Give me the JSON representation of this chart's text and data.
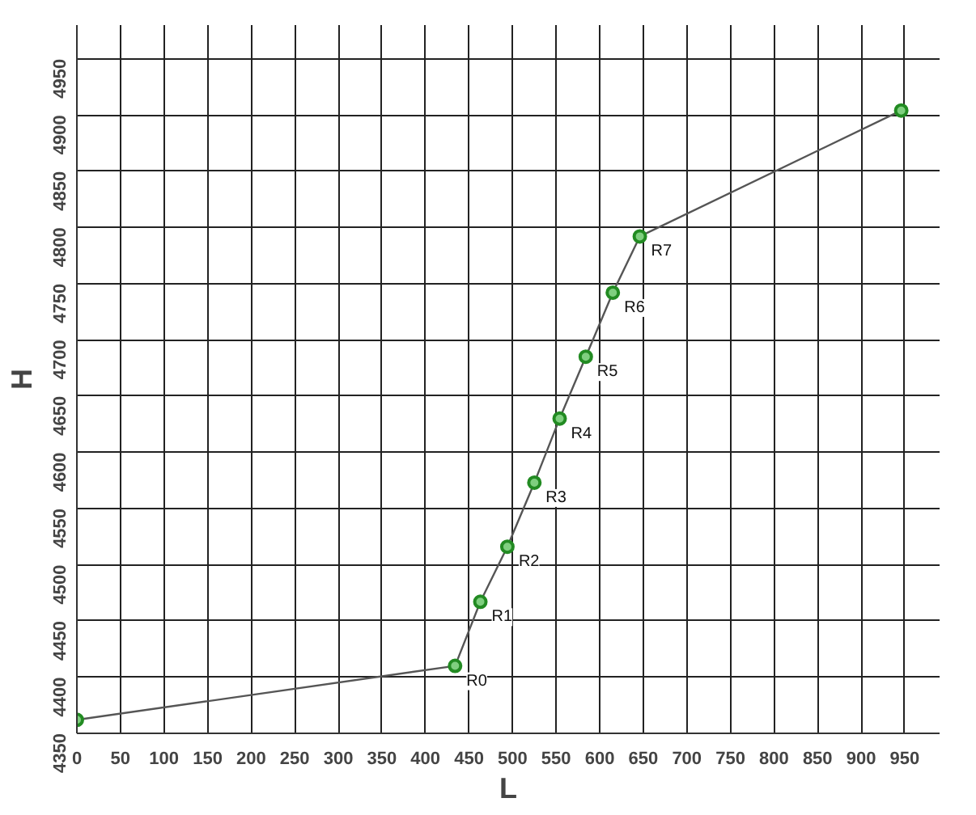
{
  "chart_data": {
    "type": "line",
    "xlabel": "L",
    "ylabel": "H",
    "x": [
      0,
      434,
      463,
      494,
      525,
      554,
      584,
      615,
      646,
      946
    ],
    "series": [
      {
        "color": "#228b22",
        "values": [
          4362,
          4410,
          4467,
          4516,
          4573,
          4630,
          4685,
          4742,
          4792,
          4904
        ]
      }
    ],
    "marker": "circle",
    "line_style": "solid",
    "grid": true,
    "xlim": [
      0,
      990
    ],
    "ylim": [
      4350,
      4980
    ],
    "xticks": [
      0,
      50,
      100,
      150,
      200,
      250,
      300,
      350,
      400,
      450,
      500,
      550,
      600,
      650,
      700,
      750,
      800,
      850,
      900,
      950
    ],
    "yticks": [
      4350,
      4400,
      4450,
      4500,
      4550,
      4600,
      4650,
      4700,
      4750,
      4800,
      4850,
      4900,
      4950
    ],
    "annotations": [
      {
        "text": "R0",
        "x": 434,
        "y": 4410
      },
      {
        "text": "R1",
        "x": 463,
        "y": 4467
      },
      {
        "text": "R2",
        "x": 494,
        "y": 4516
      },
      {
        "text": "R3",
        "x": 525,
        "y": 4573
      },
      {
        "text": "R4",
        "x": 554,
        "y": 4630
      },
      {
        "text": "R5",
        "x": 584,
        "y": 4685
      },
      {
        "text": "R6",
        "x": 615,
        "y": 4742
      },
      {
        "text": "R7",
        "x": 646,
        "y": 4792
      }
    ]
  }
}
